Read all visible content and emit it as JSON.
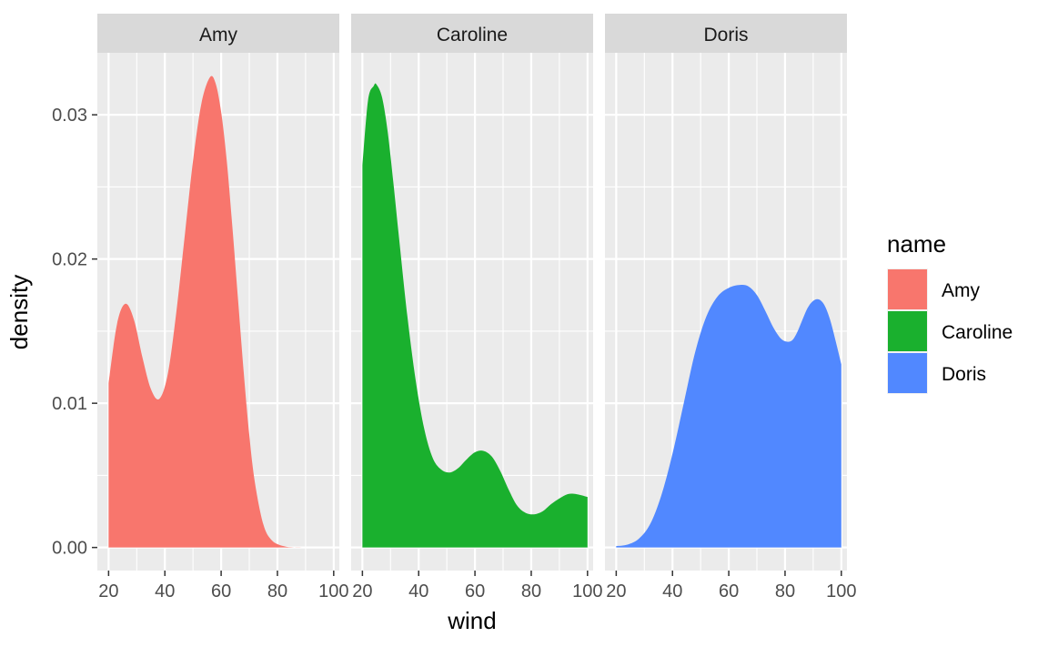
{
  "chart_data": {
    "type": "area",
    "xlabel": "wind",
    "ylabel": "density",
    "xlim": [
      16,
      102
    ],
    "ylim": [
      -0.0016,
      0.0343
    ],
    "x_ticks": [
      20,
      40,
      60,
      80,
      100
    ],
    "x_tick_labels": [
      "20",
      "40",
      "60",
      "80",
      "100"
    ],
    "y_ticks": [
      0.0,
      0.01,
      0.02,
      0.03
    ],
    "y_tick_labels": [
      "0.00",
      "0.01",
      "0.02",
      "0.03"
    ],
    "grid": true,
    "legend": {
      "title": "name",
      "placement": "right",
      "entries": [
        "Amy",
        "Caroline",
        "Doris"
      ]
    },
    "panels": [
      {
        "strip_label": "Amy",
        "color": "#F8766D",
        "x": [
          20,
          23,
          26,
          29,
          32,
          35,
          38,
          41,
          44,
          47,
          50,
          53,
          56,
          58,
          60,
          62,
          64,
          66,
          68,
          70,
          72,
          75,
          78,
          82,
          86,
          90,
          95,
          100
        ],
        "y": [
          0.0114,
          0.0155,
          0.0169,
          0.0158,
          0.0132,
          0.011,
          0.0103,
          0.012,
          0.0162,
          0.0215,
          0.0268,
          0.0308,
          0.0326,
          0.0322,
          0.0302,
          0.0268,
          0.0222,
          0.0172,
          0.0122,
          0.0078,
          0.0045,
          0.0016,
          0.0005,
          0.0001,
          0.0,
          0.0,
          0.0,
          0.0
        ]
      },
      {
        "strip_label": "Caroline",
        "color": "#1AB02E",
        "x": [
          20,
          22,
          24,
          25,
          27,
          29,
          31,
          33,
          36,
          39,
          42,
          45,
          48,
          51,
          54,
          57,
          60,
          63,
          66,
          69,
          72,
          75,
          78,
          81,
          84,
          87,
          90,
          93,
          96,
          100
        ],
        "y": [
          0.0265,
          0.031,
          0.032,
          0.0321,
          0.0312,
          0.0288,
          0.0253,
          0.0215,
          0.016,
          0.0115,
          0.0082,
          0.0062,
          0.0054,
          0.0052,
          0.0055,
          0.0061,
          0.0066,
          0.0067,
          0.0063,
          0.0053,
          0.004,
          0.0029,
          0.0024,
          0.0023,
          0.0025,
          0.003,
          0.0034,
          0.0037,
          0.0037,
          0.0035
        ]
      },
      {
        "strip_label": "Doris",
        "color": "#5188FF",
        "x": [
          20,
          24,
          28,
          32,
          36,
          40,
          44,
          48,
          52,
          56,
          60,
          64,
          67,
          70,
          73,
          76,
          79,
          82,
          84,
          86,
          88,
          90,
          92,
          94,
          96,
          98,
          100
        ],
        "y": [
          0.0001,
          0.0002,
          0.0006,
          0.0016,
          0.0036,
          0.0065,
          0.01,
          0.0135,
          0.016,
          0.0174,
          0.018,
          0.0182,
          0.0181,
          0.0175,
          0.0164,
          0.0152,
          0.0144,
          0.0143,
          0.0148,
          0.0157,
          0.0166,
          0.0171,
          0.0172,
          0.0168,
          0.0158,
          0.0143,
          0.0127
        ]
      }
    ]
  }
}
